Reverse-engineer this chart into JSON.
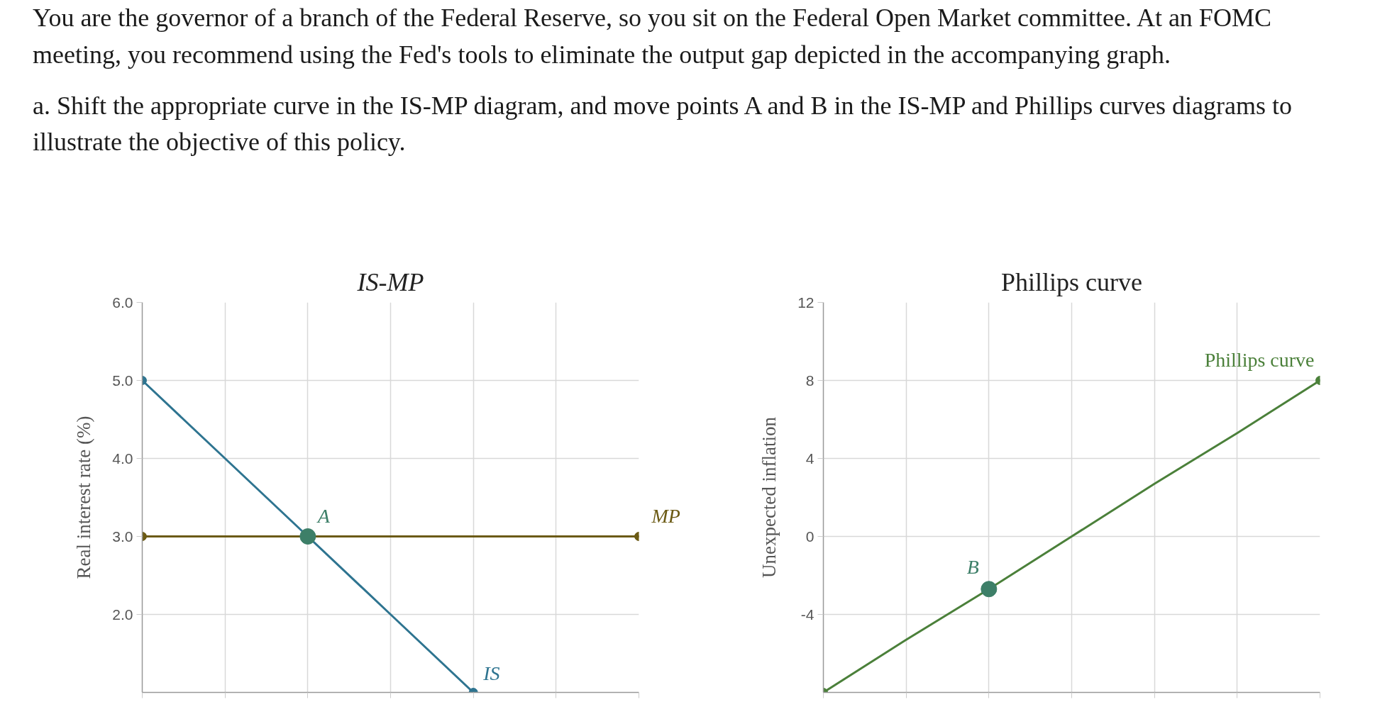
{
  "chart_data": [
    {
      "type": "other",
      "annotations": [
        "You are the governor of a branch of the Federal Reserve, so you sit on the Federal Open Market committee. At an FOMC meeting, you recommend using the Fed's tools to eliminate the output gap depicted in the accompanying graph.",
        "a. Shift the appropriate curve in the IS-MP diagram, and move points A and B in the IS-MP and Phillips curves diagrams to illustrate the objective of this policy."
      ]
    },
    {
      "type": "line",
      "title": "IS-MP",
      "ylabel": "Real interest rate (%)",
      "categories": [
        null,
        null,
        null,
        null,
        null,
        null,
        null
      ],
      "ylim": [
        1.0,
        6.0
      ],
      "yticks": [
        {
          "value": 2,
          "label": "2.0"
        },
        {
          "value": 3,
          "label": "3.0"
        },
        {
          "value": 4,
          "label": "4.0"
        },
        {
          "value": 5,
          "label": "5.0"
        },
        {
          "value": 6,
          "label": "6.0"
        }
      ],
      "grid": true,
      "tick_labels": "y",
      "line_style": "solid",
      "series": [
        {
          "name": "IS",
          "color": "#2e7490",
          "values": [
            5.0,
            4.0,
            3.0,
            2.0,
            1.0,
            null,
            null
          ]
        },
        {
          "name": "MP",
          "color": "#6b5a14",
          "values": [
            3.0,
            3.0,
            3.0,
            3.0,
            3.0,
            3.0,
            3.0
          ]
        },
        {
          "type": "scatter",
          "marker": "circle",
          "color": "#2e7490",
          "values": [
            5.0,
            null,
            null,
            null,
            1.0,
            null,
            null
          ]
        },
        {
          "type": "scatter",
          "marker": "circle",
          "color": "#6b5a14",
          "values": [
            3.0,
            null,
            null,
            null,
            null,
            null,
            3.0
          ]
        },
        {
          "name": "A",
          "type": "scatter",
          "marker": "circle",
          "color": "#3d7f68",
          "values": [
            null,
            null,
            3.0,
            null,
            null,
            null,
            null
          ]
        }
      ]
    },
    {
      "type": "line",
      "title": "Phillips curve",
      "ylabel": "Unexpected inflation",
      "categories": [
        null,
        null,
        null,
        null,
        null,
        null,
        null
      ],
      "ylim": [
        -8,
        12
      ],
      "yticks": [
        -4,
        0,
        4,
        8,
        12
      ],
      "grid": true,
      "tick_labels": "y",
      "line_style": "solid",
      "series": [
        {
          "name": "Phillips curve",
          "color": "#4b803a",
          "values": [
            -8,
            -5.3,
            -2.7,
            0,
            2.7,
            5.3,
            8
          ]
        },
        {
          "type": "scatter",
          "marker": "circle",
          "color": "#4b803a",
          "values": [
            -8,
            null,
            null,
            null,
            null,
            null,
            8
          ]
        },
        {
          "name": "B",
          "type": "scatter",
          "marker": "circle",
          "color": "#3d7f68",
          "values": [
            null,
            null,
            -2.7,
            null,
            null,
            null,
            null
          ]
        }
      ]
    }
  ]
}
